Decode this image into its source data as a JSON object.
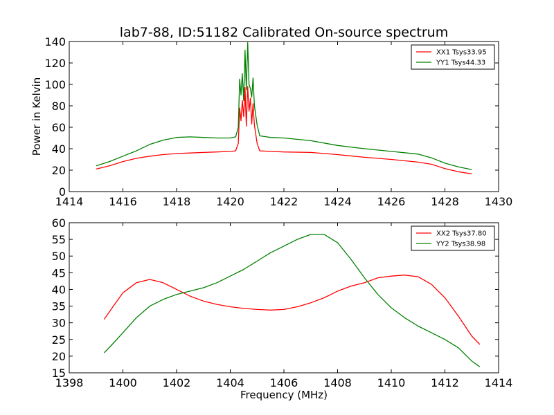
{
  "figure": {
    "title": "lab7-88, ID:51182 Calibrated On-source spectrum",
    "xlabel": "Frequency (MHz)",
    "ylabel_top": "Power in Kelvin"
  },
  "colors": {
    "xx": "#ff0000",
    "yy": "#008000",
    "axes": "#000000"
  },
  "chart_data": [
    {
      "type": "line",
      "title": "lab7-88, ID:51182 Calibrated On-source spectrum",
      "xlabel": "",
      "ylabel": "Power in Kelvin",
      "xlim": [
        1414,
        1430
      ],
      "ylim": [
        0,
        140
      ],
      "xticks": [
        "1414",
        "1416",
        "1418",
        "1420",
        "1422",
        "1424",
        "1426",
        "1428",
        "1430"
      ],
      "yticks": [
        "0",
        "20",
        "40",
        "60",
        "80",
        "100",
        "120",
        "140"
      ],
      "grid": false,
      "legend": "top-right",
      "series": [
        {
          "name": "XX1 Tsys33.95",
          "color": "#ff0000",
          "points": [
            [
              1415.0,
              21
            ],
            [
              1415.5,
              24
            ],
            [
              1416.0,
              28
            ],
            [
              1416.5,
              31
            ],
            [
              1417.0,
              33
            ],
            [
              1417.5,
              34.5
            ],
            [
              1418.0,
              35.5
            ],
            [
              1418.5,
              36
            ],
            [
              1419.0,
              36.5
            ],
            [
              1419.5,
              37
            ],
            [
              1420.0,
              37.5
            ],
            [
              1420.2,
              38
            ],
            [
              1420.3,
              45
            ],
            [
              1420.35,
              78
            ],
            [
              1420.4,
              66
            ],
            [
              1420.45,
              85
            ],
            [
              1420.5,
              70
            ],
            [
              1420.55,
              97
            ],
            [
              1420.6,
              61
            ],
            [
              1420.65,
              98
            ],
            [
              1420.7,
              75
            ],
            [
              1420.75,
              87
            ],
            [
              1420.8,
              63
            ],
            [
              1420.85,
              82
            ],
            [
              1420.9,
              62
            ],
            [
              1421.0,
              45
            ],
            [
              1421.1,
              38
            ],
            [
              1421.5,
              37.5
            ],
            [
              1422.0,
              37
            ],
            [
              1423.0,
              36.5
            ],
            [
              1424.0,
              34.5
            ],
            [
              1425.0,
              32
            ],
            [
              1426.0,
              30
            ],
            [
              1427.0,
              27.5
            ],
            [
              1427.5,
              25.5
            ],
            [
              1428.0,
              21.5
            ],
            [
              1428.5,
              18.5
            ],
            [
              1429.0,
              16.5
            ]
          ]
        },
        {
          "name": "YY1 Tsys44.33",
          "color": "#008000",
          "points": [
            [
              1415.0,
              24
            ],
            [
              1415.5,
              28
            ],
            [
              1416.0,
              33
            ],
            [
              1416.5,
              38
            ],
            [
              1417.0,
              44
            ],
            [
              1417.5,
              48
            ],
            [
              1418.0,
              50.5
            ],
            [
              1418.5,
              51
            ],
            [
              1419.0,
              50.5
            ],
            [
              1419.5,
              50
            ],
            [
              1420.0,
              50
            ],
            [
              1420.2,
              51
            ],
            [
              1420.3,
              60
            ],
            [
              1420.35,
              105
            ],
            [
              1420.4,
              90
            ],
            [
              1420.45,
              110
            ],
            [
              1420.5,
              85
            ],
            [
              1420.55,
              132
            ],
            [
              1420.6,
              95
            ],
            [
              1420.65,
              139
            ],
            [
              1420.7,
              100
            ],
            [
              1420.75,
              96
            ],
            [
              1420.8,
              88
            ],
            [
              1420.85,
              106
            ],
            [
              1420.9,
              80
            ],
            [
              1421.0,
              62
            ],
            [
              1421.1,
              52
            ],
            [
              1421.5,
              50.5
            ],
            [
              1422.0,
              50
            ],
            [
              1423.0,
              47.5
            ],
            [
              1424.0,
              43
            ],
            [
              1425.0,
              40
            ],
            [
              1426.0,
              37.5
            ],
            [
              1427.0,
              35
            ],
            [
              1427.5,
              31.5
            ],
            [
              1428.0,
              26.5
            ],
            [
              1428.5,
              23
            ],
            [
              1429.0,
              20.5
            ]
          ]
        }
      ]
    },
    {
      "type": "line",
      "title": "",
      "xlabel": "Frequency (MHz)",
      "ylabel": "",
      "xlim": [
        1398,
        1414
      ],
      "ylim": [
        15,
        60
      ],
      "xticks": [
        "1398",
        "1400",
        "1402",
        "1404",
        "1406",
        "1408",
        "1410",
        "1412",
        "1414"
      ],
      "yticks": [
        "15",
        "20",
        "25",
        "30",
        "35",
        "40",
        "45",
        "50",
        "55",
        "60"
      ],
      "grid": false,
      "legend": "top-right",
      "series": [
        {
          "name": "XX2 Tsys37.80",
          "color": "#ff0000",
          "points": [
            [
              1399.3,
              31
            ],
            [
              1399.6,
              34.5
            ],
            [
              1400.0,
              39
            ],
            [
              1400.5,
              42
            ],
            [
              1401.0,
              43
            ],
            [
              1401.5,
              42
            ],
            [
              1402.0,
              40
            ],
            [
              1402.5,
              38
            ],
            [
              1403.0,
              36.5
            ],
            [
              1403.5,
              35.5
            ],
            [
              1404.0,
              34.8
            ],
            [
              1404.5,
              34.3
            ],
            [
              1405.0,
              34
            ],
            [
              1405.5,
              33.8
            ],
            [
              1406.0,
              34
            ],
            [
              1406.5,
              34.8
            ],
            [
              1407.0,
              36
            ],
            [
              1407.5,
              37.5
            ],
            [
              1408.0,
              39.5
            ],
            [
              1408.5,
              41
            ],
            [
              1409.0,
              42
            ],
            [
              1409.5,
              43.5
            ],
            [
              1410.0,
              44
            ],
            [
              1410.5,
              44.3
            ],
            [
              1411.0,
              43.8
            ],
            [
              1411.5,
              41.5
            ],
            [
              1412.0,
              37.5
            ],
            [
              1412.5,
              32
            ],
            [
              1413.0,
              26
            ],
            [
              1413.3,
              23.5
            ]
          ]
        },
        {
          "name": "YY2 Tsys38.98",
          "color": "#008000",
          "points": [
            [
              1399.3,
              21
            ],
            [
              1399.6,
              23.5
            ],
            [
              1400.0,
              27
            ],
            [
              1400.5,
              31.5
            ],
            [
              1401.0,
              35
            ],
            [
              1401.5,
              37
            ],
            [
              1402.0,
              38.5
            ],
            [
              1402.5,
              39.5
            ],
            [
              1403.0,
              40.5
            ],
            [
              1403.5,
              42
            ],
            [
              1404.0,
              44
            ],
            [
              1404.5,
              46
            ],
            [
              1405.0,
              48.5
            ],
            [
              1405.5,
              51
            ],
            [
              1406.0,
              53
            ],
            [
              1406.5,
              55
            ],
            [
              1407.0,
              56.5
            ],
            [
              1407.5,
              56.5
            ],
            [
              1408.0,
              54
            ],
            [
              1408.5,
              49
            ],
            [
              1409.0,
              43.5
            ],
            [
              1409.5,
              38.5
            ],
            [
              1410.0,
              34.5
            ],
            [
              1410.5,
              31.5
            ],
            [
              1411.0,
              29
            ],
            [
              1411.5,
              27
            ],
            [
              1412.0,
              25
            ],
            [
              1412.5,
              22.5
            ],
            [
              1413.0,
              18.5
            ],
            [
              1413.3,
              16.8
            ]
          ]
        }
      ]
    }
  ]
}
